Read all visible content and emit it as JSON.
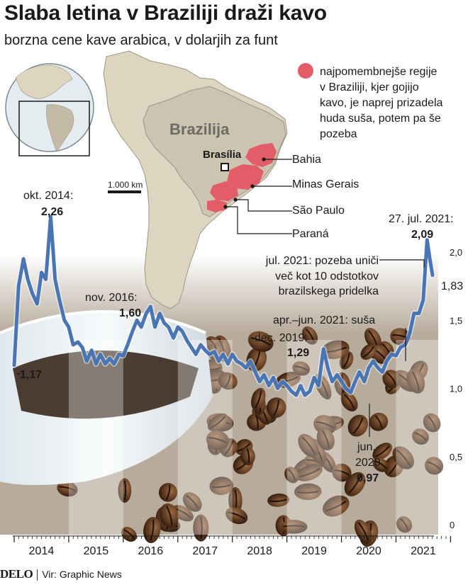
{
  "header": {
    "title": "Slaba letina v Braziliji draži kavo",
    "subtitle": "borzna cene kave arabica, v dolarjih za funt"
  },
  "map": {
    "country_label": "Brazilija",
    "capital_label": "Brasília",
    "scale_label": "1.000 km",
    "legend_text": [
      "najpomembnejše regije",
      "v Braziliji, kjer gojijo",
      "kavo, je naprej prizadela",
      "huda suša, potem pa še",
      "pozeba"
    ],
    "regions": [
      "Bahia",
      "Minas Gerais",
      "São Paulo",
      "Paraná"
    ],
    "land_color": "#ddd5c0",
    "brazil_color": "#cbc4b0",
    "region_color": "#e35d68"
  },
  "chart_data": {
    "type": "line",
    "line_color": "#4a75b5",
    "ylim": [
      0,
      2.2
    ],
    "yticks": [
      "0",
      "0,5",
      "1,0",
      "1,5",
      "2,0"
    ],
    "years": [
      "2014",
      "2015",
      "2016",
      "2017",
      "2018",
      "2019",
      "2020",
      "2021"
    ],
    "x_range": [
      2014.0,
      2021.67
    ],
    "series": [
      {
        "x": [
          2014.0,
          2014.08,
          2014.17,
          2014.25,
          2014.33,
          2014.42,
          2014.5,
          2014.58,
          2014.67,
          2014.75,
          2014.83,
          2014.92,
          2015.0,
          2015.08,
          2015.17,
          2015.25,
          2015.33,
          2015.42,
          2015.5,
          2015.58,
          2015.67,
          2015.75,
          2015.83,
          2015.92,
          2016.0,
          2016.08,
          2016.17,
          2016.25,
          2016.33,
          2016.42,
          2016.5,
          2016.58,
          2016.67,
          2016.75,
          2016.83,
          2016.92,
          2017.0,
          2017.08,
          2017.17,
          2017.25,
          2017.33,
          2017.42,
          2017.5,
          2017.58,
          2017.67,
          2017.75,
          2017.83,
          2017.92,
          2018.0,
          2018.08,
          2018.17,
          2018.25,
          2018.33,
          2018.42,
          2018.5,
          2018.58,
          2018.67,
          2018.75,
          2018.83,
          2018.92,
          2019.0,
          2019.08,
          2019.17,
          2019.25,
          2019.33,
          2019.42,
          2019.5,
          2019.58,
          2019.67,
          2019.75,
          2019.83,
          2019.92,
          2020.0,
          2020.08,
          2020.17,
          2020.25,
          2020.33,
          2020.42,
          2020.5,
          2020.58,
          2020.67,
          2020.75,
          2020.83,
          2020.92,
          2021.0,
          2021.08,
          2021.17,
          2021.25,
          2021.33,
          2021.42,
          2021.5,
          2021.57,
          2021.62,
          2021.67
        ],
        "y": [
          1.17,
          1.75,
          1.95,
          1.8,
          1.7,
          1.62,
          1.85,
          1.8,
          2.26,
          1.8,
          1.65,
          1.5,
          1.45,
          1.32,
          1.34,
          1.3,
          1.2,
          1.28,
          1.18,
          1.25,
          1.18,
          1.22,
          1.18,
          1.25,
          1.24,
          1.32,
          1.42,
          1.5,
          1.45,
          1.55,
          1.6,
          1.45,
          1.55,
          1.48,
          1.45,
          1.37,
          1.45,
          1.42,
          1.35,
          1.3,
          1.25,
          1.32,
          1.28,
          1.25,
          1.27,
          1.2,
          1.25,
          1.18,
          1.25,
          1.2,
          1.18,
          1.15,
          1.2,
          1.12,
          1.05,
          1.1,
          1.02,
          1.08,
          1.0,
          1.05,
          1.02,
          0.98,
          0.95,
          1.02,
          0.95,
          0.98,
          1.08,
          1.02,
          1.29,
          1.15,
          1.05,
          1.1,
          1.05,
          1.0,
          0.97,
          1.05,
          1.12,
          1.05,
          1.15,
          1.2,
          1.15,
          1.12,
          1.2,
          1.25,
          1.24,
          1.3,
          1.32,
          1.4,
          1.55,
          1.55,
          1.65,
          2.09,
          1.95,
          1.83
        ]
      }
    ],
    "annotations": {
      "start_value": "1,17",
      "peak_2014_date": "okt. 2014:",
      "peak_2014_value": "2,26",
      "peak_2016_date": "nov. 2016:",
      "peak_2016_value": "1,60",
      "dec_2019_date": "dec. 2019:",
      "dec_2019_value": "1,29",
      "jun_2020_month": "jun.",
      "jun_2020_year": "2020",
      "jun_2020_value": "0,97",
      "peak_2021_date": "27. jul. 2021:",
      "peak_2021_value": "2,09",
      "end_value": "1,83",
      "frost_text": [
        "jul. 2021: pozeba uniči",
        "več kot 10 odstotkov",
        "brazilskega pridelka"
      ],
      "drought_text": "apr.–jun. 2021: suša"
    }
  },
  "footer": {
    "brand": "DELO",
    "source": "Vir: Graphic News"
  }
}
